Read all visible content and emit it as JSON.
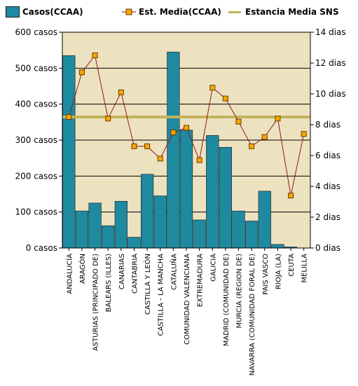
{
  "legend": {
    "casos": "Casos(CCAA)",
    "estancia": "Est.  Media(CCAA)",
    "sns": "Estancia Media SNS"
  },
  "colors": {
    "bar": "#1e8aa0",
    "bar_stroke": "#1a1a1a",
    "line": "#8b1a1a",
    "marker_fill": "#f6a800",
    "marker_stroke": "#6a3a00",
    "sns_line": "#c2b45a",
    "plot_bg": "#ede2c0",
    "grid": "#000000"
  },
  "chart_data": {
    "type": "bar",
    "categories": [
      "ANDALUCÍA",
      "ARAGÓN",
      "ASTURIAS (PRINCIPADO DE)",
      "BALEARS (ILLES)",
      "CANARIAS",
      "CANTABRIA",
      "CASTILLA Y LEÓN",
      "CASTILLA - LA MANCHA",
      "CATALUÑA",
      "COMUNIDAD VALENCIANA",
      "EXTREMADURA",
      "GALICIA",
      "MADRID (COMUNIDAD DE)",
      "MURCIA (REGION DE)",
      "NAVARRA (COMUNIDAD FORAL DE)",
      "PAIS VASCO",
      "RIOJA (LA)",
      "CEUTA",
      "MELILLA"
    ],
    "series": [
      {
        "name": "Casos(CCAA)",
        "type": "bar",
        "axis": "left",
        "values": [
          535,
          103,
          125,
          62,
          130,
          30,
          205,
          145,
          545,
          328,
          78,
          313,
          280,
          103,
          75,
          158,
          10,
          3,
          0
        ]
      },
      {
        "name": "Est.  Media(CCAA)",
        "type": "line",
        "axis": "right",
        "values": [
          8.5,
          11.4,
          12.5,
          8.4,
          10.1,
          6.6,
          6.6,
          5.8,
          7.5,
          7.8,
          5.7,
          10.4,
          9.7,
          8.2,
          6.6,
          7.2,
          8.4,
          3.4,
          7.4
        ]
      },
      {
        "name": "Estancia Media SNS",
        "type": "reference",
        "axis": "right",
        "value": 8.5
      }
    ],
    "yaxis_left": {
      "ylim": [
        0,
        600
      ],
      "ticks": [
        0,
        100,
        200,
        300,
        400,
        500,
        600
      ],
      "tick_labels": [
        "0 casos",
        "100 casos",
        "200 casos",
        "300 casos",
        "400 casos",
        "500 casos",
        "600 casos"
      ]
    },
    "yaxis_right": {
      "ylim": [
        0,
        14
      ],
      "ticks": [
        0,
        2,
        4,
        6,
        8,
        10,
        12,
        14
      ],
      "tick_labels": [
        "0 dias",
        "2 dias",
        "4 dias",
        "6 dias",
        "8 dias",
        "10 dias",
        "12 dias",
        "14 dias"
      ]
    },
    "grid": true,
    "legend_position": "top"
  }
}
